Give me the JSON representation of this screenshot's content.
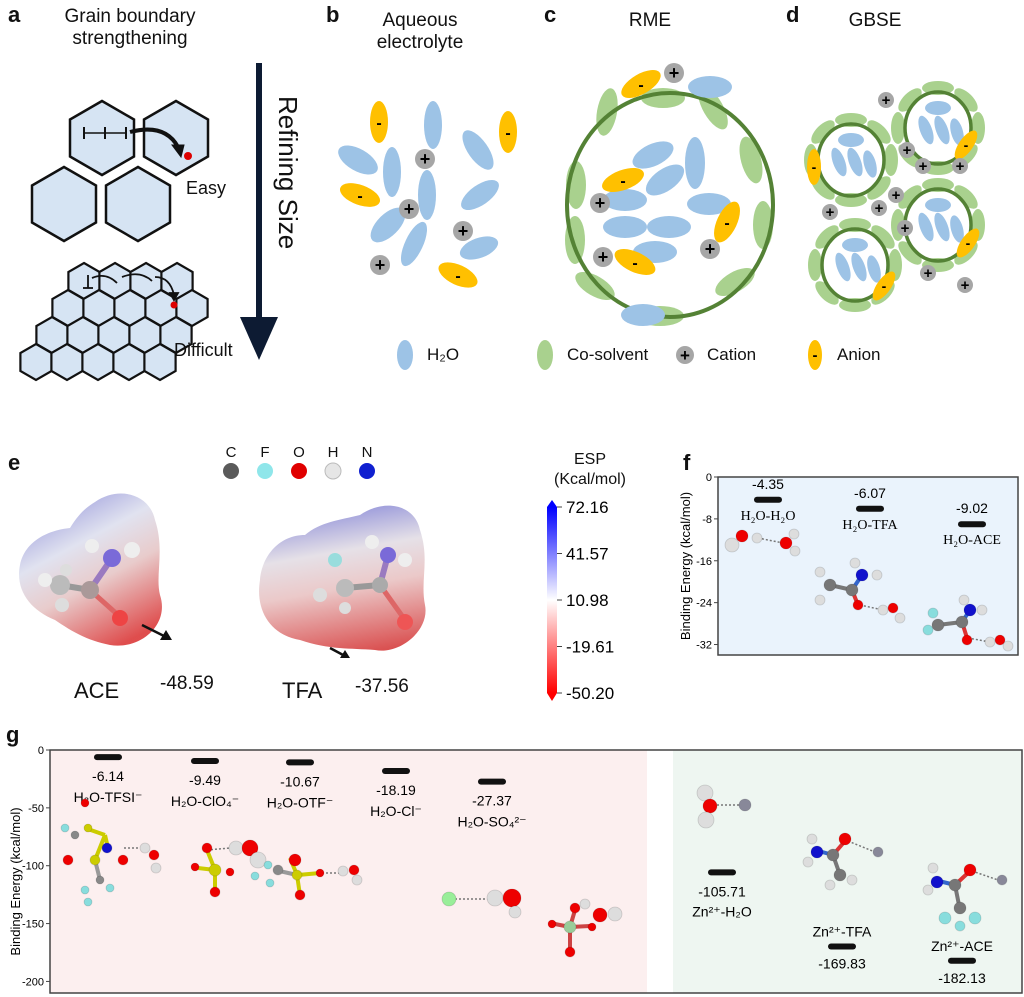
{
  "panels": {
    "a": {
      "label": "a",
      "title_line1": "Grain boundary",
      "title_line2": "strengthening",
      "arrow_label": "Refining Size",
      "easy_label": "Easy",
      "difficult_label": "Difficult"
    },
    "b": {
      "label": "b",
      "title_line1": "Aqueous",
      "title_line2": "electrolyte"
    },
    "c": {
      "label": "c",
      "title": "RME"
    },
    "d": {
      "label": "d",
      "title": "GBSE"
    },
    "legend_bcd": {
      "items": [
        {
          "icon": "h2o-ellipse-icon",
          "label": "H₂O",
          "color": "#9dc3e6"
        },
        {
          "icon": "cosolvent-ellipse-icon",
          "label": "Co-solvent",
          "color": "#a9d18e"
        },
        {
          "icon": "cation-icon",
          "label": "Cation",
          "color": "#a6a6a6"
        },
        {
          "icon": "anion-icon",
          "label": "Anion",
          "color": "#ffc000"
        }
      ]
    },
    "e": {
      "label": "e",
      "atom_legend": [
        {
          "symbol": "C",
          "color": "#5a5a5a"
        },
        {
          "symbol": "F",
          "color": "#8fe6ea"
        },
        {
          "symbol": "O",
          "color": "#e00000"
        },
        {
          "symbol": "H",
          "color": "#e6e6e6"
        },
        {
          "symbol": "N",
          "color": "#1020d0"
        }
      ],
      "molecules": [
        {
          "name": "ACE",
          "min_esp": "-48.59"
        },
        {
          "name": "TFA",
          "min_esp": "-37.56"
        }
      ],
      "colorbar": {
        "title_line1": "ESP",
        "title_line2": "(Kcal/mol)",
        "ticks": [
          "72.16",
          "41.57",
          "10.98",
          "-19.61",
          "-50.20"
        ],
        "color_max": "#0000ff",
        "color_mid": "#ffffff",
        "color_min": "#ff0000"
      }
    },
    "f": {
      "label": "f"
    },
    "g": {
      "label": "g"
    }
  },
  "chart_data": [
    {
      "id": "f",
      "type": "scatter",
      "title": "",
      "xlabel": "",
      "ylabel": "Binding Energy (kcal/mol)",
      "ylim": [
        -34,
        0
      ],
      "yticks": [
        0,
        -8,
        -16,
        -24,
        -32
      ],
      "background": "#eaf3fc",
      "categories": [
        "H₂O-H₂O",
        "H₂O-TFA",
        "H₂O-ACE"
      ],
      "values": [
        -4.35,
        -6.07,
        -9.02
      ],
      "value_labels": [
        "-4.35",
        "-6.07",
        "-9.02"
      ]
    },
    {
      "id": "g",
      "type": "scatter",
      "title": "",
      "xlabel": "",
      "ylabel": "Binding Energy (kcal/mol)",
      "ylim": [
        -210,
        0
      ],
      "yticks": [
        0,
        -50,
        -100,
        -150,
        -200
      ],
      "regions": [
        {
          "name": "water-anion",
          "color": "#fcefef"
        },
        {
          "name": "zinc-solvent",
          "color": "#eef6f1"
        }
      ],
      "series": [
        {
          "name": "water-anion",
          "categories": [
            "H₂O-TFSI⁻",
            "H₂O-ClO₄⁻",
            "H₂O-OTF⁻",
            "H₂O-Cl⁻",
            "H₂O-SO₄²⁻"
          ],
          "values": [
            -6.14,
            -9.49,
            -10.67,
            -18.19,
            -27.37
          ],
          "value_labels": [
            "-6.14",
            "-9.49",
            "-10.67",
            "-18.19",
            "-27.37"
          ]
        },
        {
          "name": "zinc-solvent",
          "categories": [
            "Zn²⁺-H₂O",
            "Zn²⁺-TFA",
            "Zn²⁺-ACE"
          ],
          "values": [
            -105.71,
            -169.83,
            -182.13
          ],
          "value_labels": [
            "-105.71",
            "-169.83",
            "-182.13"
          ]
        }
      ]
    }
  ]
}
